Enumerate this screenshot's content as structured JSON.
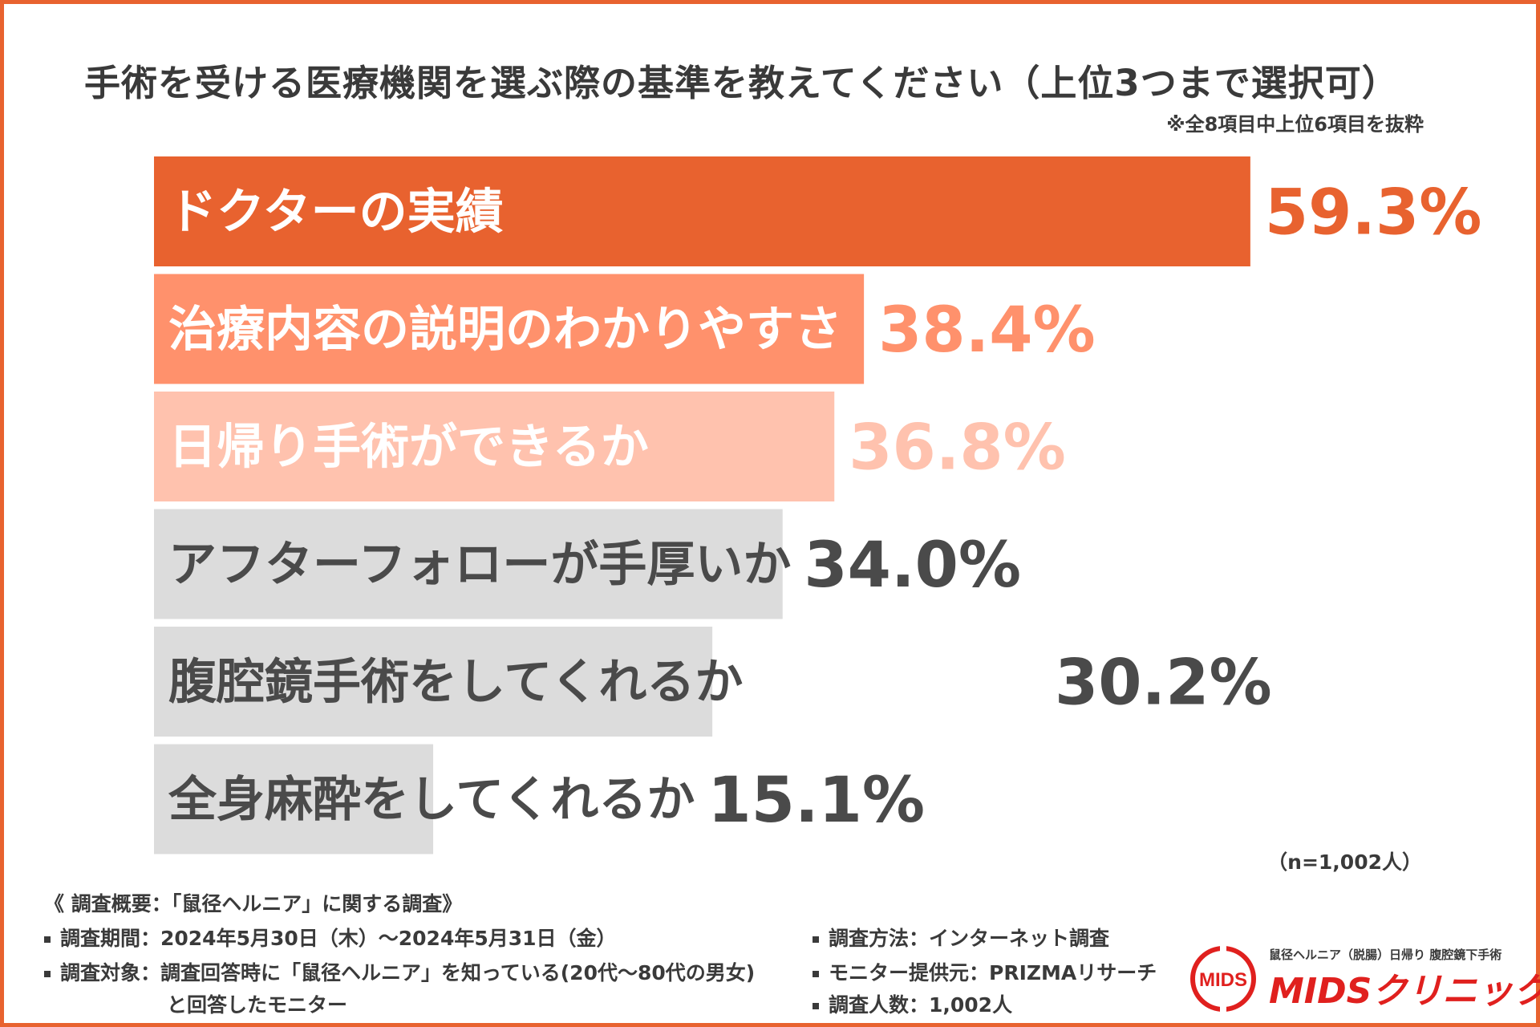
{
  "title": "手術を受ける医療機関を選ぶ際の基準を教えてください（上位3つまで選択可）",
  "note": "※全8項目中上位6項目を抜粋",
  "chart_data": {
    "type": "bar",
    "orientation": "horizontal",
    "title": "手術を受ける医療機関を選ぶ際の基準を教えてください（上位3つまで選択可）",
    "categories": [
      "ドクターの実績",
      "治療内容の説明のわかりやすさ",
      "日帰り手術ができるか",
      "アフターフォローが手厚いか",
      "腹腔鏡手術をしてくれるか",
      "全身麻酔をしてくれるか"
    ],
    "values": [
      59.3,
      38.4,
      36.8,
      34.0,
      30.2,
      15.1
    ],
    "value_labels": [
      "59.3%",
      "38.4%",
      "36.8%",
      "34.0%",
      "30.2%",
      "15.1%"
    ],
    "unit": "%",
    "xlim": [
      0,
      60
    ],
    "grid": false,
    "legend": "none",
    "bar_colors": [
      "#E8622F",
      "#FF916C",
      "#FFC2AE",
      "#DCDCDC",
      "#DCDCDC",
      "#DCDCDC"
    ],
    "label_colors": [
      "#FFFFFF",
      "#FFFFFF",
      "#FFFFFF",
      "#4A4A4A",
      "#4A4A4A",
      "#4A4A4A"
    ],
    "value_colors": [
      "#E8622F",
      "#FF916C",
      "#FFC2AE",
      "#4A4A4A",
      "#4A4A4A",
      "#4A4A4A"
    ]
  },
  "sample": "（n=1,002人）",
  "survey": {
    "heading": "《 調査概要：「鼠径ヘルニア」に関する調査》",
    "period": "調査期間：2024年5月30日（木）～2024年5月31日（金）",
    "target": "調査対象：調査回答時に「鼠径ヘルニア」を知っている(20代～80代の男女)",
    "target_cont": "と回答したモニター",
    "method": "調査方法：インターネット調査",
    "provider": "モニター提供元：PRIZMAリサーチ",
    "count": "調査人数：1,002人"
  },
  "logo": {
    "sub": "鼠径ヘルニア（脱腸）日帰り 腹腔鏡下手術",
    "badge": "MIDS",
    "name": "MIDSクリニック"
  },
  "colors": {
    "accent": "#E8622F",
    "logo_red": "#E0201E",
    "text": "#3a3a3a"
  }
}
